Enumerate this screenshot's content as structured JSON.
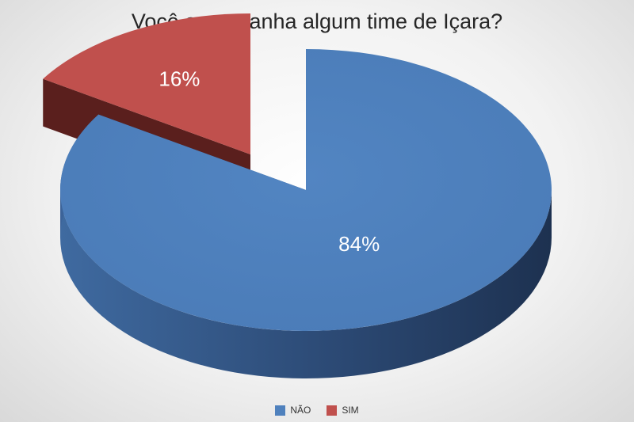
{
  "chart_data": {
    "type": "pie",
    "title": "Você acompanha algum time de Içara?",
    "categories": [
      "NÃO",
      "SIM"
    ],
    "values": [
      84,
      16
    ],
    "labels": [
      "84%",
      "16%"
    ],
    "colors": [
      "#4f81bd",
      "#c0504d"
    ],
    "exploded": "SIM",
    "three_d": true,
    "legend_position": "bottom"
  }
}
